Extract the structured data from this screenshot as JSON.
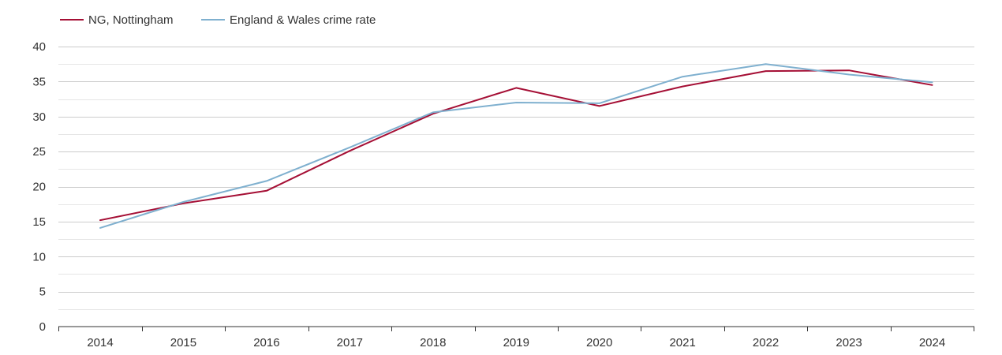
{
  "chart_data": {
    "type": "line",
    "title": "",
    "xlabel": "",
    "ylabel": "",
    "x": [
      "2014",
      "2015",
      "2016",
      "2017",
      "2018",
      "2019",
      "2020",
      "2021",
      "2022",
      "2023",
      "2024"
    ],
    "ylim": [
      0,
      40
    ],
    "yticks": [
      "0",
      "5",
      "10",
      "15",
      "20",
      "25",
      "30",
      "35",
      "40"
    ],
    "grid": true,
    "legend_position": "top-left",
    "series": [
      {
        "name": "NG, Nottingham",
        "color": "#a50f35",
        "values": [
          15.2,
          17.6,
          19.4,
          25.1,
          30.4,
          34.1,
          31.5,
          34.3,
          36.5,
          36.6,
          34.5
        ]
      },
      {
        "name": "England & Wales crime rate",
        "color": "#7fb0cf",
        "values": [
          14.1,
          17.8,
          20.8,
          25.6,
          30.6,
          32.0,
          31.9,
          35.7,
          37.5,
          36.0,
          34.9
        ]
      }
    ]
  }
}
